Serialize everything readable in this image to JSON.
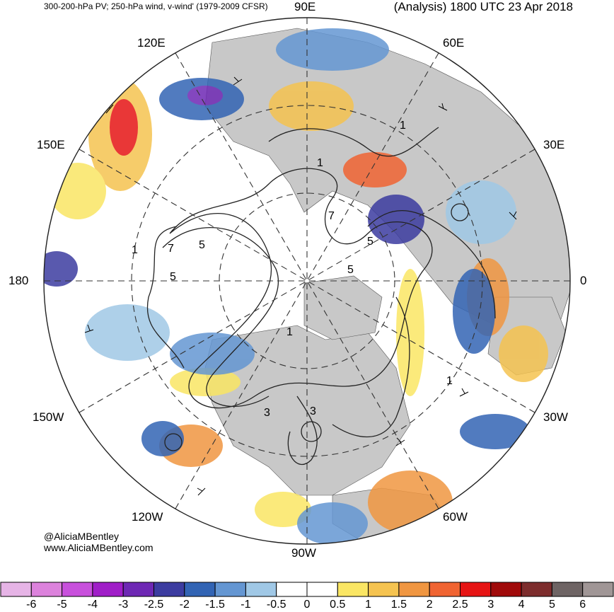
{
  "header": {
    "left_title": "300-200-hPa PV; 250-hPa wind, v-wind' (1979-2009 CFSR)",
    "right_title": "(Analysis) 1800 UTC 23 Apr 2018"
  },
  "credits": {
    "handle": "@AliciaMBentley",
    "website": "www.AliciaMBentley.com"
  },
  "longitude_labels": {
    "e90": "90E",
    "e60": "60E",
    "e30": "30E",
    "zero": "0",
    "e120": "120E",
    "e150": "150E",
    "dateline": "180",
    "w150": "150W",
    "w120": "120W",
    "w90": "90W",
    "w60": "60W",
    "w30": "30W"
  },
  "pv_contour_labels": [
    "1",
    "5",
    "7",
    "5",
    "1",
    "5",
    "3",
    "5",
    "7",
    "1",
    "3",
    "1",
    "1"
  ],
  "colorbar": {
    "ticks": [
      "-6",
      "-5",
      "-4",
      "-3",
      "-2.5",
      "-2",
      "-1.5",
      "-1",
      "-0.5",
      "0",
      "0.5",
      "1",
      "1.5",
      "2",
      "2.5",
      "3",
      "4",
      "5",
      "6"
    ],
    "colors": [
      "#e6b4e6",
      "#dc82dc",
      "#c850dc",
      "#a01ec8",
      "#6e28b4",
      "#3c3ca0",
      "#3264b4",
      "#6496d2",
      "#a0c8e6",
      "#ffffff",
      "#ffffff",
      "#fae664",
      "#f5c350",
      "#f09641",
      "#f06432",
      "#e61414",
      "#a00a0a",
      "#7d2d2d",
      "#6e6464",
      "#a09696"
    ]
  },
  "map_colors": {
    "land": "#c8c8c8",
    "negative": [
      "#a0c8e6",
      "#6496d2",
      "#3264b4",
      "#6e28b4"
    ],
    "positive": [
      "#fae664",
      "#f5c350",
      "#f09641",
      "#e61414"
    ]
  }
}
